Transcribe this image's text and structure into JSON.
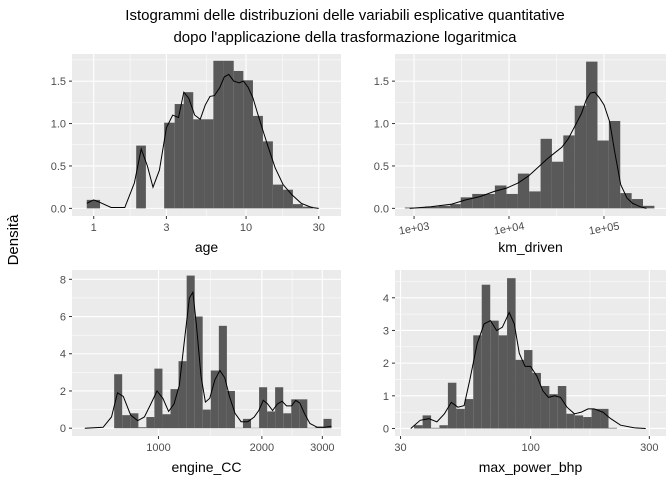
{
  "figure": {
    "title_line1": "Istogrammi delle distribuzioni delle variabili esplicative quantitative",
    "title_line2": "dopo l'applicazione della trasformazione logaritmica",
    "y_label": "Densità",
    "colors": {
      "panel_bg": "#ebebeb",
      "grid_major": "#ffffff",
      "bar": "#595959",
      "line": "#000000",
      "tick_text": "#4d4d4d"
    }
  },
  "chart_data": [
    {
      "type": "bar",
      "xlabel": "age",
      "x_scale": "log10",
      "xlim": [
        0.72,
        42
      ],
      "ylim": [
        -0.09,
        1.82
      ],
      "x_ticks": [
        1,
        3,
        10,
        30
      ],
      "x_tick_labels": [
        "1",
        "3",
        "10",
        "30"
      ],
      "y_ticks": [
        0,
        0.5,
        1.0,
        1.5
      ],
      "y_tick_labels": [
        "0.0",
        "0.5",
        "1.0",
        "1.5"
      ],
      "bins": [
        {
          "x0": 0.9,
          "x1": 1.1,
          "y": 0.1
        },
        {
          "x0": 1.9,
          "x1": 2.2,
          "y": 0.74
        },
        {
          "x0": 2.2,
          "x1": 2.9,
          "y": 0.0
        },
        {
          "x0": 2.9,
          "x1": 3.4,
          "y": 1.01
        },
        {
          "x0": 3.4,
          "x1": 3.9,
          "y": 1.23
        },
        {
          "x0": 3.9,
          "x1": 4.5,
          "y": 1.37
        },
        {
          "x0": 4.5,
          "x1": 5.3,
          "y": 1.05
        },
        {
          "x0": 5.3,
          "x1": 6.1,
          "y": 1.05
        },
        {
          "x0": 6.1,
          "x1": 7.1,
          "y": 1.74
        },
        {
          "x0": 7.1,
          "x1": 8.3,
          "y": 1.74
        },
        {
          "x0": 8.3,
          "x1": 9.6,
          "y": 1.62
        },
        {
          "x0": 9.6,
          "x1": 11.1,
          "y": 1.51
        },
        {
          "x0": 11.1,
          "x1": 12.9,
          "y": 1.09
        },
        {
          "x0": 12.9,
          "x1": 15.0,
          "y": 0.79
        },
        {
          "x0": 15.0,
          "x1": 17.5,
          "y": 0.28
        },
        {
          "x0": 17.5,
          "x1": 20.3,
          "y": 0.22
        },
        {
          "x0": 20.3,
          "x1": 23.6,
          "y": 0.05
        },
        {
          "x0": 23.6,
          "x1": 27.4,
          "y": 0.02
        }
      ],
      "density": [
        [
          0.9,
          0.06
        ],
        [
          1.0,
          0.1
        ],
        [
          1.1,
          0.07
        ],
        [
          1.3,
          0.01
        ],
        [
          1.6,
          0.01
        ],
        [
          1.85,
          0.3
        ],
        [
          2.05,
          0.7
        ],
        [
          2.25,
          0.5
        ],
        [
          2.45,
          0.25
        ],
        [
          2.7,
          0.45
        ],
        [
          3.0,
          0.95
        ],
        [
          3.3,
          1.1
        ],
        [
          3.6,
          1.07
        ],
        [
          3.9,
          1.37
        ],
        [
          4.2,
          1.3
        ],
        [
          4.6,
          1.1
        ],
        [
          5.0,
          1.05
        ],
        [
          5.4,
          1.22
        ],
        [
          5.8,
          1.32
        ],
        [
          6.2,
          1.33
        ],
        [
          6.7,
          1.42
        ],
        [
          7.2,
          1.55
        ],
        [
          7.7,
          1.58
        ],
        [
          8.3,
          1.5
        ],
        [
          9.0,
          1.48
        ],
        [
          9.6,
          1.5
        ],
        [
          10.3,
          1.43
        ],
        [
          11.1,
          1.3
        ],
        [
          12.0,
          1.1
        ],
        [
          13.0,
          0.9
        ],
        [
          14.0,
          0.72
        ],
        [
          15.5,
          0.48
        ],
        [
          17.5,
          0.28
        ],
        [
          20.0,
          0.16
        ],
        [
          23.0,
          0.06
        ],
        [
          27.0,
          0.01
        ],
        [
          30.0,
          0.0
        ]
      ]
    },
    {
      "type": "bar",
      "xlabel": "km_driven",
      "x_scale": "log10",
      "xlim": [
        630,
        450000
      ],
      "ylim": [
        -0.09,
        1.82
      ],
      "x_ticks": [
        1000,
        10000,
        100000
      ],
      "x_tick_labels": [
        "1e+03",
        "1e+04",
        "1e+05"
      ],
      "y_ticks": [
        0,
        0.5,
        1.0,
        1.5
      ],
      "y_tick_labels": [
        "0.0",
        "0.5",
        "1.0",
        "1.5"
      ],
      "bins": [
        {
          "x0": 800,
          "x1": 1000,
          "y": 0.01
        },
        {
          "x0": 1000,
          "x1": 1300,
          "y": 0.01
        },
        {
          "x0": 1300,
          "x1": 1800,
          "y": 0.02
        },
        {
          "x0": 1800,
          "x1": 2400,
          "y": 0.03
        },
        {
          "x0": 2400,
          "x1": 3100,
          "y": 0.05
        },
        {
          "x0": 3100,
          "x1": 4100,
          "y": 0.13
        },
        {
          "x0": 4100,
          "x1": 5400,
          "y": 0.17
        },
        {
          "x0": 5400,
          "x1": 7100,
          "y": 0.17
        },
        {
          "x0": 7100,
          "x1": 9400,
          "y": 0.27
        },
        {
          "x0": 9400,
          "x1": 12400,
          "y": 0.17
        },
        {
          "x0": 12400,
          "x1": 16300,
          "y": 0.41
        },
        {
          "x0": 16300,
          "x1": 21500,
          "y": 0.2
        },
        {
          "x0": 21500,
          "x1": 28300,
          "y": 0.82
        },
        {
          "x0": 28300,
          "x1": 37300,
          "y": 0.55
        },
        {
          "x0": 37300,
          "x1": 49200,
          "y": 0.86
        },
        {
          "x0": 49200,
          "x1": 64800,
          "y": 1.21
        },
        {
          "x0": 64800,
          "x1": 85400,
          "y": 1.73
        },
        {
          "x0": 85400,
          "x1": 112600,
          "y": 0.8
        },
        {
          "x0": 112600,
          "x1": 148400,
          "y": 1.03
        },
        {
          "x0": 148400,
          "x1": 195600,
          "y": 0.18
        },
        {
          "x0": 195600,
          "x1": 257700,
          "y": 0.11
        },
        {
          "x0": 257700,
          "x1": 339700,
          "y": 0.03
        }
      ],
      "density": [
        [
          900,
          0.0
        ],
        [
          1500,
          0.02
        ],
        [
          2500,
          0.05
        ],
        [
          3500,
          0.1
        ],
        [
          5000,
          0.14
        ],
        [
          7000,
          0.2
        ],
        [
          9500,
          0.24
        ],
        [
          12500,
          0.3
        ],
        [
          16000,
          0.38
        ],
        [
          20000,
          0.48
        ],
        [
          25000,
          0.58
        ],
        [
          30000,
          0.65
        ],
        [
          36000,
          0.72
        ],
        [
          42000,
          0.82
        ],
        [
          50000,
          0.98
        ],
        [
          58000,
          1.12
        ],
        [
          65000,
          1.28
        ],
        [
          72000,
          1.36
        ],
        [
          80000,
          1.37
        ],
        [
          90000,
          1.3
        ],
        [
          100000,
          1.22
        ],
        [
          115000,
          1.02
        ],
        [
          130000,
          0.66
        ],
        [
          150000,
          0.28
        ],
        [
          175000,
          0.12
        ],
        [
          200000,
          0.06
        ],
        [
          240000,
          0.02
        ],
        [
          280000,
          0.0
        ]
      ]
    },
    {
      "type": "bar",
      "xlabel": "engine_CC",
      "x_scale": "log10",
      "xlim": [
        560,
        3400
      ],
      "ylim": [
        -0.42,
        8.5
      ],
      "x_ticks": [
        1000,
        2000,
        3000
      ],
      "x_tick_labels": [
        "1000",
        "2000",
        "3000"
      ],
      "y_ticks": [
        0,
        2,
        4,
        6,
        8
      ],
      "y_tick_labels": [
        "0",
        "2",
        "4",
        "6",
        "8"
      ],
      "bins": [
        {
          "x0": 743,
          "x1": 784,
          "y": 2.9
        },
        {
          "x0": 784,
          "x1": 828,
          "y": 0.7
        },
        {
          "x0": 828,
          "x1": 874,
          "y": 0.8
        },
        {
          "x0": 874,
          "x1": 922,
          "y": 0.05
        },
        {
          "x0": 922,
          "x1": 973,
          "y": 0.6
        },
        {
          "x0": 973,
          "x1": 1027,
          "y": 3.2
        },
        {
          "x0": 1027,
          "x1": 1084,
          "y": 0.75
        },
        {
          "x0": 1084,
          "x1": 1144,
          "y": 2.1
        },
        {
          "x0": 1144,
          "x1": 1208,
          "y": 3.6
        },
        {
          "x0": 1208,
          "x1": 1275,
          "y": 8.2
        },
        {
          "x0": 1275,
          "x1": 1345,
          "y": 6.0
        },
        {
          "x0": 1345,
          "x1": 1420,
          "y": 1.0
        },
        {
          "x0": 1420,
          "x1": 1499,
          "y": 3.1
        },
        {
          "x0": 1499,
          "x1": 1582,
          "y": 5.5
        },
        {
          "x0": 1582,
          "x1": 1670,
          "y": 2.0
        },
        {
          "x0": 1670,
          "x1": 1762,
          "y": 0.02
        },
        {
          "x0": 1762,
          "x1": 1860,
          "y": 0.5
        },
        {
          "x0": 1860,
          "x1": 1963,
          "y": 0.02
        },
        {
          "x0": 1963,
          "x1": 2072,
          "y": 2.2
        },
        {
          "x0": 2072,
          "x1": 2186,
          "y": 0.9
        },
        {
          "x0": 2186,
          "x1": 2308,
          "y": 2.2
        },
        {
          "x0": 2308,
          "x1": 2436,
          "y": 0.8
        },
        {
          "x0": 2436,
          "x1": 2571,
          "y": 1.55
        },
        {
          "x0": 2571,
          "x1": 2713,
          "y": 1.55
        },
        {
          "x0": 2713,
          "x1": 2864,
          "y": 0.02
        },
        {
          "x0": 2864,
          "x1": 3023,
          "y": 0.08
        },
        {
          "x0": 3023,
          "x1": 3191,
          "y": 0.5
        }
      ],
      "density": [
        [
          610,
          0.0
        ],
        [
          690,
          0.05
        ],
        [
          730,
          0.6
        ],
        [
          760,
          1.9
        ],
        [
          790,
          1.7
        ],
        [
          830,
          0.7
        ],
        [
          870,
          0.4
        ],
        [
          910,
          0.6
        ],
        [
          950,
          1.3
        ],
        [
          990,
          2.0
        ],
        [
          1030,
          1.6
        ],
        [
          1070,
          0.9
        ],
        [
          1110,
          1.3
        ],
        [
          1150,
          2.3
        ],
        [
          1190,
          4.7
        ],
        [
          1230,
          7.0
        ],
        [
          1260,
          7.3
        ],
        [
          1290,
          5.5
        ],
        [
          1330,
          2.8
        ],
        [
          1370,
          1.4
        ],
        [
          1410,
          1.6
        ],
        [
          1460,
          2.6
        ],
        [
          1510,
          3.1
        ],
        [
          1560,
          2.7
        ],
        [
          1610,
          1.7
        ],
        [
          1670,
          0.8
        ],
        [
          1740,
          0.35
        ],
        [
          1820,
          0.35
        ],
        [
          1900,
          0.6
        ],
        [
          1960,
          0.95
        ],
        [
          2020,
          1.5
        ],
        [
          2080,
          1.3
        ],
        [
          2150,
          0.95
        ],
        [
          2220,
          1.3
        ],
        [
          2290,
          1.45
        ],
        [
          2360,
          1.2
        ],
        [
          2440,
          1.2
        ],
        [
          2510,
          1.5
        ],
        [
          2580,
          1.35
        ],
        [
          2660,
          0.8
        ],
        [
          2760,
          0.25
        ],
        [
          2900,
          0.05
        ],
        [
          3050,
          0.05
        ],
        [
          3191,
          0.1
        ]
      ]
    },
    {
      "type": "bar",
      "xlabel": "max_power_bhp",
      "x_scale": "log10",
      "xlim": [
        28.5,
        350
      ],
      "ylim": [
        -0.23,
        4.85
      ],
      "x_ticks": [
        30,
        100,
        300
      ],
      "x_tick_labels": [
        "30",
        "100",
        "300"
      ],
      "y_ticks": [
        0,
        1,
        2,
        3,
        4
      ],
      "y_tick_labels": [
        "0",
        "1",
        "2",
        "3",
        "4"
      ],
      "bins": [
        {
          "x0": 34.0,
          "x1": 36.8,
          "y": 0.1
        },
        {
          "x0": 36.8,
          "x1": 39.8,
          "y": 0.4
        },
        {
          "x0": 39.8,
          "x1": 43.0,
          "y": 0.02
        },
        {
          "x0": 43.0,
          "x1": 46.5,
          "y": 0.1
        },
        {
          "x0": 46.5,
          "x1": 50.3,
          "y": 1.4
        },
        {
          "x0": 50.3,
          "x1": 54.4,
          "y": 0.6
        },
        {
          "x0": 54.4,
          "x1": 58.8,
          "y": 0.9
        },
        {
          "x0": 58.8,
          "x1": 63.6,
          "y": 2.85
        },
        {
          "x0": 63.6,
          "x1": 68.8,
          "y": 4.4
        },
        {
          "x0": 68.8,
          "x1": 74.4,
          "y": 3.3
        },
        {
          "x0": 74.4,
          "x1": 80.4,
          "y": 2.85
        },
        {
          "x0": 80.4,
          "x1": 87.0,
          "y": 4.6
        },
        {
          "x0": 87.0,
          "x1": 94.1,
          "y": 2.1
        },
        {
          "x0": 94.1,
          "x1": 101.7,
          "y": 2.4
        },
        {
          "x0": 101.7,
          "x1": 110.0,
          "y": 1.7
        },
        {
          "x0": 110.0,
          "x1": 118.9,
          "y": 1.3
        },
        {
          "x0": 118.9,
          "x1": 128.6,
          "y": 1.05
        },
        {
          "x0": 128.6,
          "x1": 139.1,
          "y": 1.3
        },
        {
          "x0": 139.1,
          "x1": 150.4,
          "y": 0.45
        },
        {
          "x0": 150.4,
          "x1": 162.6,
          "y": 0.4
        },
        {
          "x0": 162.6,
          "x1": 175.8,
          "y": 0.35
        },
        {
          "x0": 175.8,
          "x1": 190.1,
          "y": 0.6
        },
        {
          "x0": 190.1,
          "x1": 205.6,
          "y": 0.6
        },
        {
          "x0": 205.6,
          "x1": 222.3,
          "y": 0.02
        }
      ],
      "density": [
        [
          33,
          0.0
        ],
        [
          36,
          0.25
        ],
        [
          39,
          0.3
        ],
        [
          42,
          0.2
        ],
        [
          45,
          0.45
        ],
        [
          48,
          0.8
        ],
        [
          51,
          0.65
        ],
        [
          54,
          0.7
        ],
        [
          57,
          1.5
        ],
        [
          61,
          2.6
        ],
        [
          65,
          3.2
        ],
        [
          69,
          3.3
        ],
        [
          73,
          3.0
        ],
        [
          77,
          3.1
        ],
        [
          82,
          3.55
        ],
        [
          86,
          3.2
        ],
        [
          90,
          2.3
        ],
        [
          95,
          1.9
        ],
        [
          100,
          1.9
        ],
        [
          106,
          1.6
        ],
        [
          112,
          1.15
        ],
        [
          118,
          0.95
        ],
        [
          125,
          1.0
        ],
        [
          132,
          0.95
        ],
        [
          140,
          0.65
        ],
        [
          150,
          0.45
        ],
        [
          160,
          0.5
        ],
        [
          170,
          0.6
        ],
        [
          180,
          0.6
        ],
        [
          195,
          0.5
        ],
        [
          210,
          0.3
        ],
        [
          230,
          0.1
        ],
        [
          260,
          0.02
        ],
        [
          290,
          0.0
        ]
      ]
    }
  ]
}
